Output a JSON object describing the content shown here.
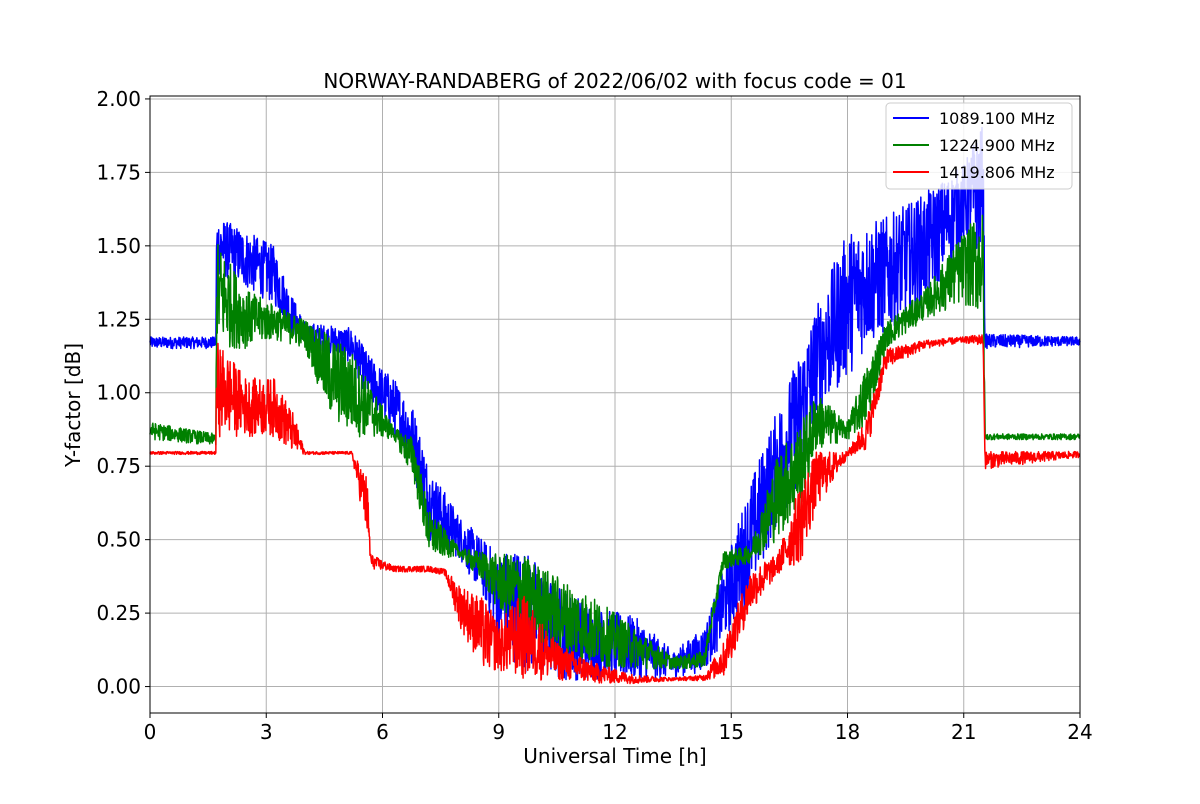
{
  "chart_data": {
    "type": "line",
    "title": "NORWAY-RANDABERG of 2022/06/02 with focus code = 01",
    "xlabel": "Universal Time [h]",
    "ylabel": "Y-factor [dB]",
    "xlim": [
      0,
      24
    ],
    "ylim": [
      -0.09,
      2.01
    ],
    "xticks": [
      0,
      3,
      6,
      9,
      12,
      15,
      18,
      21,
      24
    ],
    "xtick_labels": [
      "0",
      "3",
      "6",
      "9",
      "12",
      "15",
      "18",
      "21",
      "24"
    ],
    "yticks": [
      0.0,
      0.25,
      0.5,
      0.75,
      1.0,
      1.25,
      1.5,
      1.75,
      2.0
    ],
    "ytick_labels": [
      "0.00",
      "0.25",
      "0.50",
      "0.75",
      "1.00",
      "1.25",
      "1.50",
      "1.75",
      "2.00"
    ],
    "grid": true,
    "legend_position": "top-right",
    "series": [
      {
        "name": "1089.100 MHz",
        "color": "#0000ff",
        "lower": [
          [
            0,
            1.15
          ],
          [
            1.7,
            1.15
          ],
          [
            1.72,
            1.4
          ],
          [
            2.5,
            1.35
          ],
          [
            3.2,
            1.3
          ],
          [
            3.6,
            1.2
          ],
          [
            4.0,
            1.16
          ],
          [
            5.2,
            1.1
          ],
          [
            5.7,
            0.95
          ],
          [
            6.3,
            0.85
          ],
          [
            6.8,
            0.72
          ],
          [
            7.2,
            0.5
          ],
          [
            8.0,
            0.43
          ],
          [
            8.6,
            0.3
          ],
          [
            9.0,
            0.15
          ],
          [
            9.6,
            0.05
          ],
          [
            10.5,
            0.02
          ],
          [
            11.5,
            0.02
          ],
          [
            12.5,
            0.02
          ],
          [
            13.5,
            0.03
          ],
          [
            14.3,
            0.05
          ],
          [
            14.8,
            0.15
          ],
          [
            15.5,
            0.3
          ],
          [
            16.2,
            0.55
          ],
          [
            16.8,
            0.7
          ],
          [
            17.2,
            0.9
          ],
          [
            18.0,
            1.05
          ],
          [
            18.5,
            1.15
          ],
          [
            19.0,
            1.2
          ],
          [
            20.0,
            1.3
          ],
          [
            21.0,
            1.5
          ],
          [
            21.5,
            1.45
          ],
          [
            21.55,
            1.15
          ],
          [
            24,
            1.16
          ]
        ],
        "upper": [
          [
            0,
            1.19
          ],
          [
            1.7,
            1.19
          ],
          [
            1.72,
            1.6
          ],
          [
            2.5,
            1.55
          ],
          [
            3.2,
            1.5
          ],
          [
            3.6,
            1.35
          ],
          [
            4.0,
            1.24
          ],
          [
            5.2,
            1.22
          ],
          [
            5.7,
            1.12
          ],
          [
            6.3,
            1.05
          ],
          [
            6.8,
            0.95
          ],
          [
            7.2,
            0.75
          ],
          [
            8.0,
            0.58
          ],
          [
            8.6,
            0.5
          ],
          [
            9.0,
            0.46
          ],
          [
            9.6,
            0.48
          ],
          [
            10.5,
            0.35
          ],
          [
            11.5,
            0.27
          ],
          [
            12.5,
            0.24
          ],
          [
            13.5,
            0.12
          ],
          [
            14.3,
            0.2
          ],
          [
            14.8,
            0.4
          ],
          [
            15.5,
            0.7
          ],
          [
            16.2,
            0.95
          ],
          [
            16.8,
            1.15
          ],
          [
            17.2,
            1.3
          ],
          [
            18.0,
            1.55
          ],
          [
            18.5,
            1.58
          ],
          [
            19.0,
            1.6
          ],
          [
            20.0,
            1.68
          ],
          [
            21.0,
            1.78
          ],
          [
            21.5,
            1.92
          ],
          [
            21.55,
            1.2
          ],
          [
            24,
            1.19
          ]
        ]
      },
      {
        "name": "1224.900 MHz",
        "color": "#008000",
        "lower": [
          [
            0,
            0.84
          ],
          [
            1.7,
            0.82
          ],
          [
            1.72,
            1.15
          ],
          [
            2.5,
            1.15
          ],
          [
            3.2,
            1.18
          ],
          [
            4.0,
            1.15
          ],
          [
            4.6,
            0.92
          ],
          [
            5.2,
            0.85
          ],
          [
            6.3,
            0.84
          ],
          [
            6.8,
            0.7
          ],
          [
            7.2,
            0.44
          ],
          [
            8.0,
            0.44
          ],
          [
            8.6,
            0.35
          ],
          [
            9.0,
            0.25
          ],
          [
            9.6,
            0.2
          ],
          [
            10.5,
            0.1
          ],
          [
            11.5,
            0.07
          ],
          [
            12.5,
            0.06
          ],
          [
            13.5,
            0.06
          ],
          [
            14.3,
            0.06
          ],
          [
            14.8,
            0.4
          ],
          [
            15.5,
            0.42
          ],
          [
            16.2,
            0.5
          ],
          [
            16.8,
            0.6
          ],
          [
            17.2,
            0.8
          ],
          [
            18.0,
            0.84
          ],
          [
            18.5,
            0.88
          ],
          [
            19.0,
            1.15
          ],
          [
            20.0,
            1.25
          ],
          [
            21.0,
            1.3
          ],
          [
            21.5,
            1.25
          ],
          [
            21.55,
            0.84
          ],
          [
            24,
            0.84
          ]
        ],
        "upper": [
          [
            0,
            0.9
          ],
          [
            1.7,
            0.86
          ],
          [
            1.72,
            1.52
          ],
          [
            2.5,
            1.35
          ],
          [
            3.2,
            1.3
          ],
          [
            4.0,
            1.25
          ],
          [
            4.6,
            1.2
          ],
          [
            5.2,
            1.15
          ],
          [
            6.3,
            0.88
          ],
          [
            6.8,
            0.85
          ],
          [
            7.2,
            0.6
          ],
          [
            8.0,
            0.47
          ],
          [
            8.6,
            0.46
          ],
          [
            9.0,
            0.45
          ],
          [
            9.6,
            0.45
          ],
          [
            10.5,
            0.38
          ],
          [
            11.5,
            0.3
          ],
          [
            12.5,
            0.2
          ],
          [
            13.5,
            0.1
          ],
          [
            14.3,
            0.12
          ],
          [
            14.8,
            0.46
          ],
          [
            15.5,
            0.48
          ],
          [
            16.2,
            0.8
          ],
          [
            16.8,
            0.9
          ],
          [
            17.2,
            1.0
          ],
          [
            18.0,
            0.9
          ],
          [
            18.5,
            1.1
          ],
          [
            19.0,
            1.24
          ],
          [
            20.0,
            1.35
          ],
          [
            21.0,
            1.55
          ],
          [
            21.5,
            1.62
          ],
          [
            21.55,
            0.86
          ],
          [
            24,
            0.86
          ]
        ]
      },
      {
        "name": "1419.806 MHz",
        "color": "#ff0000",
        "lower": [
          [
            0,
            0.79
          ],
          [
            1.7,
            0.79
          ],
          [
            1.72,
            0.85
          ],
          [
            2.5,
            0.85
          ],
          [
            3.2,
            0.85
          ],
          [
            3.7,
            0.79
          ],
          [
            4.0,
            0.79
          ],
          [
            5.2,
            0.79
          ],
          [
            5.6,
            0.5
          ],
          [
            5.7,
            0.4
          ],
          [
            6.3,
            0.39
          ],
          [
            7.2,
            0.39
          ],
          [
            7.6,
            0.38
          ],
          [
            8.0,
            0.2
          ],
          [
            8.6,
            0.05
          ],
          [
            9.0,
            0.05
          ],
          [
            9.6,
            0.02
          ],
          [
            10.5,
            0.02
          ],
          [
            11.5,
            0.01
          ],
          [
            12.5,
            0.01
          ],
          [
            13.5,
            0.02
          ],
          [
            14.3,
            0.02
          ],
          [
            14.8,
            0.03
          ],
          [
            15.5,
            0.25
          ],
          [
            16.2,
            0.38
          ],
          [
            16.8,
            0.42
          ],
          [
            17.2,
            0.6
          ],
          [
            18.0,
            0.78
          ],
          [
            18.5,
            0.8
          ],
          [
            19.0,
            1.08
          ],
          [
            20.0,
            1.15
          ],
          [
            21.0,
            1.17
          ],
          [
            21.5,
            1.16
          ],
          [
            21.55,
            0.74
          ],
          [
            24,
            0.78
          ]
        ],
        "upper": [
          [
            0,
            0.8
          ],
          [
            1.7,
            0.8
          ],
          [
            1.72,
            1.18
          ],
          [
            2.5,
            1.05
          ],
          [
            3.2,
            1.05
          ],
          [
            3.7,
            0.93
          ],
          [
            4.0,
            0.8
          ],
          [
            5.2,
            0.8
          ],
          [
            5.6,
            0.72
          ],
          [
            5.7,
            0.45
          ],
          [
            6.3,
            0.41
          ],
          [
            7.2,
            0.41
          ],
          [
            7.6,
            0.4
          ],
          [
            8.0,
            0.35
          ],
          [
            8.6,
            0.3
          ],
          [
            9.0,
            0.22
          ],
          [
            9.6,
            0.32
          ],
          [
            10.5,
            0.15
          ],
          [
            11.5,
            0.08
          ],
          [
            12.5,
            0.04
          ],
          [
            13.5,
            0.03
          ],
          [
            14.3,
            0.04
          ],
          [
            14.8,
            0.15
          ],
          [
            15.5,
            0.4
          ],
          [
            16.2,
            0.45
          ],
          [
            16.8,
            0.7
          ],
          [
            17.2,
            0.8
          ],
          [
            18.0,
            0.8
          ],
          [
            18.5,
            0.92
          ],
          [
            19.0,
            1.15
          ],
          [
            20.0,
            1.18
          ],
          [
            21.0,
            1.19
          ],
          [
            21.5,
            1.2
          ],
          [
            21.55,
            0.8
          ],
          [
            24,
            0.8
          ]
        ]
      }
    ]
  }
}
